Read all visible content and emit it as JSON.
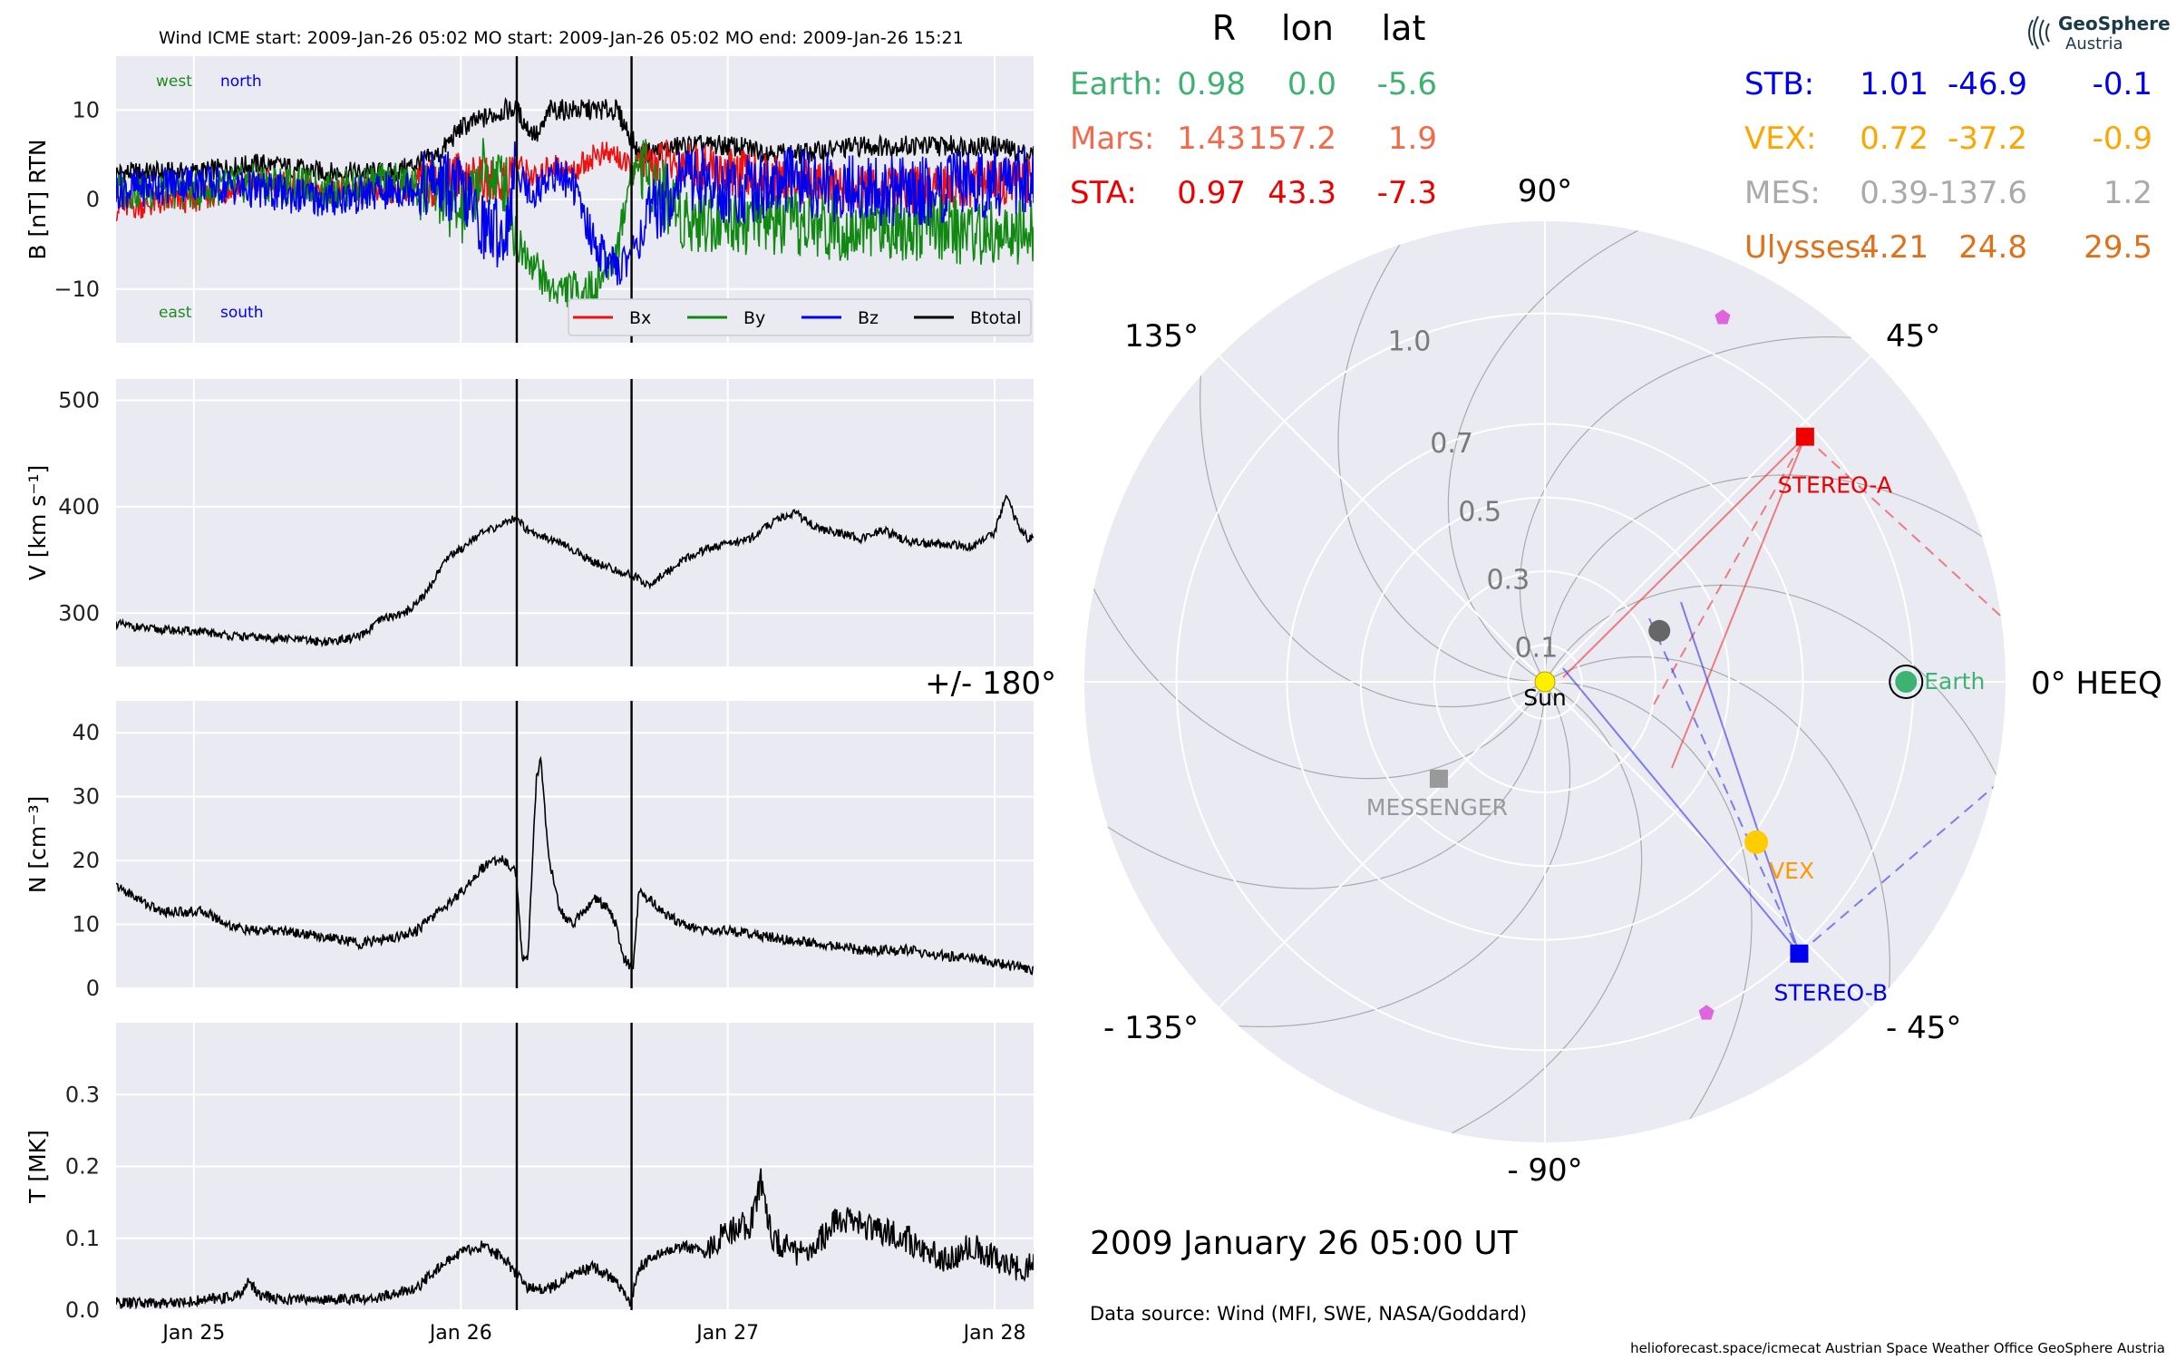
{
  "header": {
    "title": "Wind    ICME start: 2009-Jan-26 05:02   MO start: 2009-Jan-26 05:02   MO end: 2009-Jan-26 15:21"
  },
  "time_axis": {
    "start_hours": 0,
    "end_hours": 82,
    "ticks": [
      {
        "label": "Jan 25",
        "hours": 0
      },
      {
        "label": "Jan 26",
        "hours": 24
      },
      {
        "label": "Jan 27",
        "hours": 48
      },
      {
        "label": "Jan 28",
        "hours": 72
      }
    ],
    "vertical_lines_hours": [
      29.03,
      39.35
    ]
  },
  "b_panel": {
    "ylabel": "B [nT] RTN",
    "corner_labels": {
      "west": "west",
      "north": "north",
      "east": "east",
      "south": "south"
    },
    "colors": {
      "west": "#1e8a1e",
      "north": "#0000ee",
      "east": "#1e8a1e",
      "south": "#0000ee"
    },
    "legend": [
      {
        "name": "Bx",
        "color": "#ee1111"
      },
      {
        "name": "By",
        "color": "#118811"
      },
      {
        "name": "Bz",
        "color": "#0000ee"
      },
      {
        "name": "Btotal",
        "color": "#000000"
      }
    ]
  },
  "v_panel": {
    "ylabel": "V [km s⁻¹]"
  },
  "n_panel": {
    "ylabel": "N [cm⁻³]"
  },
  "t_panel": {
    "ylabel": "T [MK]"
  },
  "chart_data": [
    {
      "type": "line",
      "title": "Wind    ICME start: 2009-Jan-26 05:02   MO start: 2009-Jan-26 05:02   MO end: 2009-Jan-26 15:21",
      "ylabel": "B [nT] RTN",
      "ylim": [
        -16,
        16
      ],
      "yticks": [
        -10,
        0,
        10
      ],
      "grid": true,
      "legend_position": "bottom-right",
      "x_unit": "hours since 2009-Jan-25 00:00",
      "series": [
        {
          "name": "Btotal",
          "color": "#000000",
          "x": [
            -7,
            0,
            6,
            12,
            18,
            22,
            24,
            26,
            28,
            29,
            30,
            31,
            32,
            34,
            36,
            38,
            39.3,
            40,
            44,
            48,
            54,
            60,
            66,
            72,
            75
          ],
          "y": [
            3,
            3,
            4,
            3,
            3,
            5,
            8,
            9,
            10,
            10,
            8,
            7,
            10,
            10,
            10,
            10,
            7,
            5,
            6,
            6,
            5,
            6,
            6,
            6,
            5
          ]
        },
        {
          "name": "Bx",
          "color": "#ee1111",
          "x": [
            -7,
            0,
            6,
            12,
            18,
            22,
            24,
            26,
            28,
            29,
            30,
            31,
            32,
            34,
            36,
            38,
            39.3,
            40,
            44,
            48,
            54,
            60,
            66,
            72,
            75
          ],
          "y": [
            -1,
            0,
            2,
            1,
            1,
            2,
            3,
            2,
            2,
            4,
            3,
            2,
            4,
            3,
            5,
            5,
            3,
            4,
            4,
            3,
            2,
            1,
            1,
            2,
            2
          ]
        },
        {
          "name": "By",
          "color": "#118811",
          "x": [
            -7,
            0,
            6,
            12,
            18,
            22,
            24,
            26,
            28,
            29,
            30,
            31,
            32,
            34,
            36,
            38,
            39.3,
            40,
            44,
            48,
            54,
            60,
            66,
            72,
            75
          ],
          "y": [
            1,
            1,
            2,
            1,
            2,
            1,
            -2,
            3,
            2,
            -5,
            -6,
            -8,
            -10,
            -10,
            -10,
            -6,
            3,
            4,
            -2,
            -2,
            -3,
            -3,
            -3,
            -4,
            -4
          ]
        },
        {
          "name": "Bz",
          "color": "#0000ee",
          "x": [
            -7,
            0,
            6,
            12,
            18,
            22,
            24,
            26,
            28,
            29,
            30,
            31,
            32,
            34,
            36,
            38,
            39.3,
            40,
            44,
            48,
            54,
            60,
            66,
            72,
            75
          ],
          "y": [
            1,
            2,
            1,
            0,
            1,
            2,
            1,
            -3,
            -4,
            4,
            1,
            1,
            3,
            2,
            -5,
            -8,
            -6,
            -4,
            3,
            1,
            2,
            1,
            1,
            2,
            2
          ]
        }
      ]
    },
    {
      "type": "line",
      "ylabel": "V [km s⁻¹]",
      "ylim": [
        250,
        520
      ],
      "yticks": [
        300,
        400,
        500
      ],
      "grid": true,
      "x_unit": "hours since 2009-Jan-25 00:00",
      "series": [
        {
          "color": "#000000",
          "x": [
            -7,
            -4,
            0,
            4,
            8,
            12,
            15,
            17,
            19,
            20,
            21,
            22,
            23,
            24,
            25,
            26,
            27,
            28,
            29,
            30,
            32,
            34,
            36,
            38,
            40,
            41,
            42,
            44,
            46,
            48,
            50,
            52,
            54,
            56,
            58,
            60,
            62,
            64,
            66,
            68,
            70,
            72,
            73,
            74,
            75
          ],
          "y": [
            290,
            285,
            283,
            278,
            276,
            273,
            278,
            295,
            300,
            310,
            320,
            340,
            355,
            360,
            370,
            375,
            380,
            385,
            390,
            378,
            370,
            360,
            348,
            340,
            333,
            325,
            335,
            350,
            360,
            365,
            370,
            385,
            395,
            380,
            375,
            370,
            378,
            368,
            365,
            365,
            362,
            375,
            410,
            385,
            370
          ]
        }
      ]
    },
    {
      "type": "line",
      "ylabel": "N [cm⁻³]",
      "ylim": [
        0,
        45
      ],
      "yticks": [
        0,
        10,
        20,
        30,
        40
      ],
      "grid": true,
      "x_unit": "hours since 2009-Jan-25 00:00",
      "series": [
        {
          "color": "#000000",
          "x": [
            -7,
            -5,
            -3,
            -1,
            1,
            3,
            5,
            8,
            12,
            15,
            18,
            20,
            22,
            24,
            26,
            27,
            28,
            29,
            29.5,
            30,
            30.8,
            31.2,
            31.8,
            32.5,
            33,
            34,
            35,
            36,
            37,
            38,
            38.5,
            39,
            39.5,
            40,
            41,
            42,
            44,
            46,
            48,
            52,
            56,
            60,
            64,
            68,
            70,
            72,
            75
          ],
          "y": [
            16,
            14,
            12,
            12,
            12,
            10,
            9,
            9,
            8,
            7,
            8,
            9,
            12,
            15,
            19,
            20,
            20,
            18,
            5,
            4,
            33,
            36,
            22,
            15,
            12,
            10,
            12,
            14,
            13,
            10,
            5,
            4,
            3,
            15,
            14,
            12,
            10,
            9,
            9,
            8,
            7,
            6,
            6,
            5,
            5,
            4,
            3
          ]
        }
      ]
    },
    {
      "type": "line",
      "ylabel": "T [MK]",
      "ylim": [
        0,
        0.4
      ],
      "yticks": [
        0.0,
        0.1,
        0.2,
        0.3
      ],
      "grid": true,
      "x_unit": "hours since 2009-Jan-25 00:00",
      "series": [
        {
          "color": "#000000",
          "x": [
            -7,
            -3,
            0,
            4,
            5,
            6,
            8,
            12,
            16,
            20,
            22,
            24,
            26,
            28,
            29,
            30,
            32,
            34,
            36,
            38,
            39.3,
            40,
            42,
            44,
            46,
            48,
            50,
            51,
            52,
            54,
            56,
            58,
            60,
            62,
            64,
            66,
            68,
            70,
            72,
            74,
            75
          ],
          "y": [
            0.01,
            0.01,
            0.012,
            0.02,
            0.04,
            0.02,
            0.015,
            0.015,
            0.015,
            0.03,
            0.06,
            0.08,
            0.09,
            0.07,
            0.05,
            0.03,
            0.03,
            0.05,
            0.06,
            0.04,
            0.01,
            0.06,
            0.08,
            0.09,
            0.08,
            0.11,
            0.12,
            0.18,
            0.1,
            0.08,
            0.09,
            0.13,
            0.12,
            0.11,
            0.1,
            0.08,
            0.07,
            0.09,
            0.07,
            0.06,
            0.06
          ]
        }
      ]
    },
    {
      "type": "polar",
      "frame": "HEEQ",
      "radial_ticks": [
        {
          "value": 0.1,
          "label": "0.1"
        },
        {
          "value": 0.3,
          "label": "0.3"
        },
        {
          "value": 0.5,
          "label": "0.5"
        },
        {
          "value": 0.7,
          "label": "0.7"
        },
        {
          "value": 1.0,
          "label": "1.0"
        }
      ],
      "rmax": 1.25,
      "angle_labels": [
        {
          "deg": 0,
          "label": "0° HEEQ"
        },
        {
          "deg": 45,
          "label": "45°"
        },
        {
          "deg": 90,
          "label": "90°"
        },
        {
          "deg": 135,
          "label": "135°"
        },
        {
          "deg": 180,
          "label": "+/- 180°"
        },
        {
          "deg": -135,
          "label": "- 135°"
        },
        {
          "deg": -90,
          "label": "- 90°"
        },
        {
          "deg": -45,
          "label": "- 45°"
        }
      ],
      "objects": [
        {
          "name": "Sun",
          "label": "Sun",
          "r": 0.0,
          "lon": 0.0,
          "color": "#ffee00",
          "label_color": "#000000",
          "marker": "circle"
        },
        {
          "name": "Earth",
          "label": "Earth",
          "r": 0.98,
          "lon": 0.0,
          "color": "#3cb371",
          "label_color": "#3cb371",
          "marker": "circle-ringed"
        },
        {
          "name": "STEREO-A",
          "label": "STEREO-A",
          "r": 0.97,
          "lon": 43.3,
          "color": "#ee0000",
          "label_color": "#ee0000",
          "marker": "square"
        },
        {
          "name": "STEREO-B",
          "label": "STEREO-B",
          "r": 1.01,
          "lon": -46.9,
          "color": "#0000ee",
          "label_color": "#0000ee",
          "marker": "square"
        },
        {
          "name": "VEX",
          "label": "VEX",
          "r": 0.72,
          "lon": -37.2,
          "color": "#ffcc00",
          "label_color": "#ff9900",
          "marker": "circle"
        },
        {
          "name": "MESSENGER",
          "label": "MESSENGER",
          "r": 0.39,
          "lon": -137.6,
          "color": "#999999",
          "label_color": "#999999",
          "marker": "square"
        },
        {
          "name": "Mars",
          "label": "",
          "r": 0.34,
          "lon": 24.0,
          "color": "#666666",
          "label_color": "#666666",
          "marker": "circle"
        },
        {
          "name": "PSP-1",
          "label": "",
          "r": 1.1,
          "lon": 64.0,
          "color": "#dd66dd",
          "label_color": "#dd66dd",
          "marker": "pentagon"
        },
        {
          "name": "PSP-2",
          "label": "",
          "r": 1.0,
          "lon": -64.0,
          "color": "#dd66dd",
          "label_color": "#dd66dd",
          "marker": "pentagon"
        }
      ]
    }
  ],
  "positions_table": {
    "headers": [
      "R",
      "lon",
      "lat"
    ],
    "left": [
      {
        "label": "Earth:",
        "R": "0.98",
        "lon": "0.0",
        "lat": "-5.6",
        "color": "#3cb371"
      },
      {
        "label": "Mars:",
        "R": "1.43",
        "lon": "157.2",
        "lat": "1.9",
        "color": "#f4694a"
      },
      {
        "label": "STA:",
        "R": "0.97",
        "lon": "43.3",
        "lat": "-7.3",
        "color": "#ee0000"
      }
    ],
    "right": [
      {
        "label": "STB:",
        "R": "1.01",
        "lon": "-46.9",
        "lat": "-0.1",
        "color": "#0000ee"
      },
      {
        "label": "VEX:",
        "R": "0.72",
        "lon": "-37.2",
        "lat": "-0.9",
        "color": "#ffa500"
      },
      {
        "label": "MES:",
        "R": "0.39",
        "lon": "-137.6",
        "lat": "1.2",
        "color": "#aaaaaa"
      },
      {
        "label": "Ulysses:",
        "R": "4.21",
        "lon": "24.8",
        "lat": "29.5",
        "color": "#e0701a"
      }
    ]
  },
  "logo": {
    "line1": "GeoSphere",
    "line2": "Austria"
  },
  "date_text": "2009 January 26  05:00 UT",
  "source_text": "Data source: Wind (MFI, SWE, NASA/Goddard)",
  "footer_text": "helioforecast.space/icmecat   Austrian Space Weather Office   GeoSphere Austria"
}
